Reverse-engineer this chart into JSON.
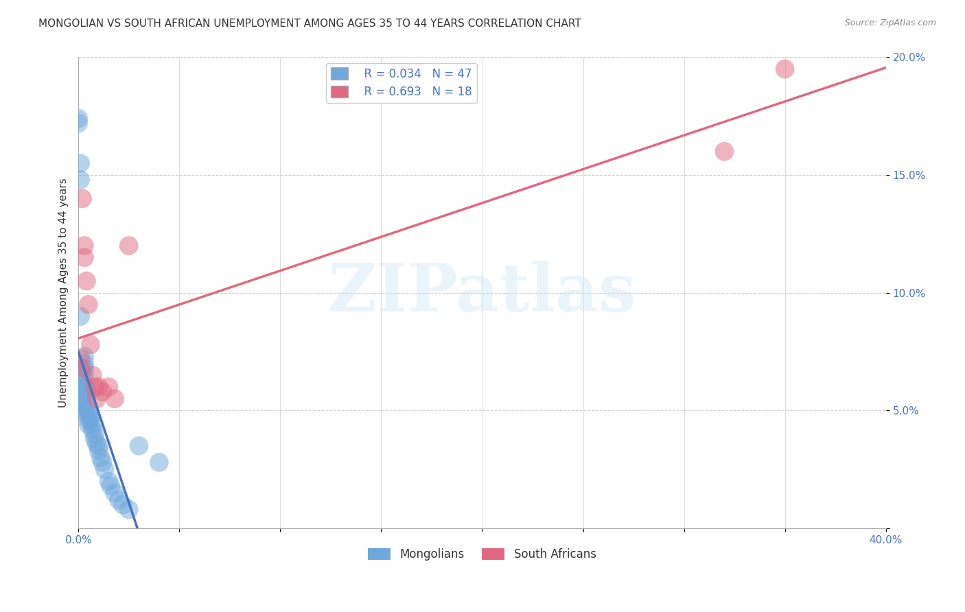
{
  "title": "MONGOLIAN VS SOUTH AFRICAN UNEMPLOYMENT AMONG AGES 35 TO 44 YEARS CORRELATION CHART",
  "source": "Source: ZipAtlas.com",
  "ylabel": "Unemployment Among Ages 35 to 44 years",
  "mongolian_color": "#6fa8dc",
  "sa_color": "#e06880",
  "mongolian_line_color": "#4472c4",
  "sa_line_color": "#e06880",
  "mongolian_R": 0.034,
  "mongolian_N": 47,
  "sa_R": 0.693,
  "sa_N": 18,
  "watermark": "ZIPatlas",
  "mongolians_x": [
    0.0,
    0.0,
    0.001,
    0.001,
    0.001,
    0.001,
    0.001,
    0.001,
    0.002,
    0.002,
    0.002,
    0.002,
    0.002,
    0.002,
    0.003,
    0.003,
    0.003,
    0.003,
    0.003,
    0.004,
    0.004,
    0.004,
    0.004,
    0.005,
    0.005,
    0.005,
    0.005,
    0.006,
    0.006,
    0.007,
    0.007,
    0.008,
    0.008,
    0.009,
    0.01,
    0.01,
    0.011,
    0.012,
    0.013,
    0.015,
    0.016,
    0.018,
    0.02,
    0.022,
    0.025,
    0.03,
    0.04
  ],
  "mongolians_y": [
    0.174,
    0.172,
    0.155,
    0.148,
    0.09,
    0.055,
    0.052,
    0.05,
    0.068,
    0.065,
    0.062,
    0.058,
    0.055,
    0.052,
    0.073,
    0.07,
    0.068,
    0.065,
    0.06,
    0.06,
    0.058,
    0.055,
    0.052,
    0.05,
    0.048,
    0.046,
    0.044,
    0.048,
    0.046,
    0.044,
    0.042,
    0.04,
    0.038,
    0.036,
    0.035,
    0.033,
    0.03,
    0.028,
    0.025,
    0.02,
    0.018,
    0.015,
    0.012,
    0.01,
    0.008,
    0.035,
    0.028
  ],
  "sa_x": [
    0.001,
    0.001,
    0.002,
    0.003,
    0.003,
    0.004,
    0.005,
    0.006,
    0.007,
    0.008,
    0.009,
    0.01,
    0.012,
    0.015,
    0.018,
    0.025,
    0.32,
    0.35
  ],
  "sa_y": [
    0.072,
    0.068,
    0.14,
    0.12,
    0.115,
    0.105,
    0.095,
    0.078,
    0.065,
    0.06,
    0.055,
    0.06,
    0.058,
    0.06,
    0.055,
    0.12,
    0.16,
    0.195
  ],
  "xlim": [
    0.0,
    0.4
  ],
  "ylim": [
    0.0,
    0.2
  ],
  "xtick_positions": [
    0.0,
    0.05,
    0.1,
    0.15,
    0.2,
    0.25,
    0.3,
    0.35,
    0.4
  ],
  "xtick_labels": [
    "0.0%",
    "",
    "",
    "",
    "",
    "",
    "",
    "",
    "40.0%"
  ],
  "ytick_positions": [
    0.0,
    0.05,
    0.1,
    0.15,
    0.2
  ],
  "ytick_labels": [
    "",
    "5.0%",
    "10.0%",
    "15.0%",
    "20.0%"
  ],
  "background_color": "#ffffff",
  "grid_color": "#cccccc",
  "title_fontsize": 11,
  "axis_label_fontsize": 11,
  "tick_fontsize": 11,
  "legend_fontsize": 12
}
